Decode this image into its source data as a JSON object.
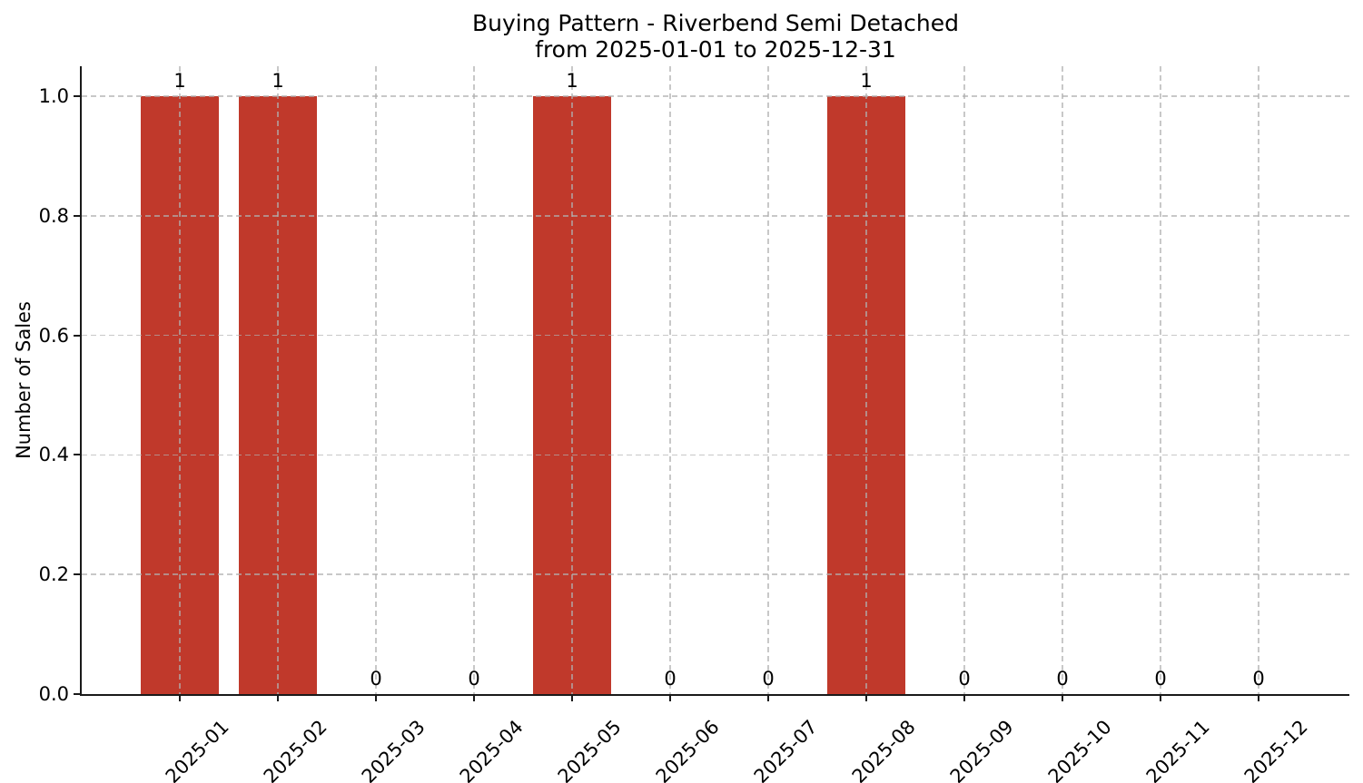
{
  "chart_data": {
    "type": "bar",
    "title": "Buying Pattern - Riverbend Semi Detached",
    "subtitle": "from 2025-01-01 to 2025-12-31",
    "xlabel": "",
    "ylabel": "Number of Sales",
    "categories": [
      "2025-01",
      "2025-02",
      "2025-03",
      "2025-04",
      "2025-05",
      "2025-06",
      "2025-07",
      "2025-08",
      "2025-09",
      "2025-10",
      "2025-11",
      "2025-12"
    ],
    "values": [
      1,
      1,
      0,
      0,
      1,
      0,
      0,
      1,
      0,
      0,
      0,
      0
    ],
    "bar_value_labels": [
      "1",
      "1",
      "0",
      "0",
      "1",
      "0",
      "0",
      "1",
      "0",
      "0",
      "0",
      "0"
    ],
    "ylim": [
      0,
      1.05
    ],
    "yticks": [
      0.0,
      0.2,
      0.4,
      0.6,
      0.8,
      1.0
    ],
    "ytick_labels": [
      "0.0",
      "0.2",
      "0.4",
      "0.6",
      "0.8",
      "1.0"
    ],
    "xtick_rotation_deg": 45,
    "grid": "both-axes, dashed, drawn over bars",
    "legend": null
  },
  "style": {
    "bar_color": "#c0392b",
    "grid_color": "rgba(176,176,176,0.7)",
    "axis_color": "#1a1a1a",
    "text_color": "#000000",
    "background_color": "#ffffff"
  }
}
